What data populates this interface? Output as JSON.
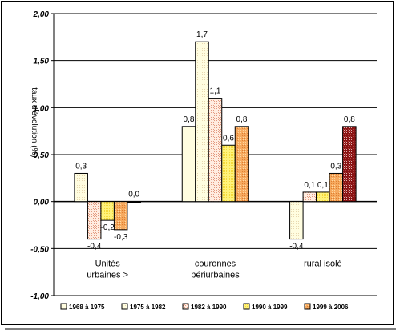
{
  "chart_data": {
    "type": "bar",
    "categories": [
      "Unités urbaines >",
      "couronnes périurbaines",
      "rural isolé"
    ],
    "category_lines": [
      [
        "Unités",
        "urbaines >"
      ],
      [
        "couronnes",
        "périurbaines"
      ],
      [
        "rural isolé"
      ]
    ],
    "series": [
      {
        "name": "1968 à 1975",
        "values": [
          null,
          0.8,
          null
        ],
        "labels": [
          null,
          "0,8",
          null
        ],
        "color": "#fffde0",
        "pattern": "plain"
      },
      {
        "name": "1975 à 1982",
        "values": [
          0.3,
          1.7,
          -0.4
        ],
        "labels": [
          "0,3",
          "1,7",
          "-0,4"
        ],
        "color": "#fffde0",
        "pattern": "light"
      },
      {
        "name": "1982 à 1990",
        "values": [
          -0.4,
          1.1,
          0.1
        ],
        "labels": [
          "-0,4",
          "1,1",
          "0,1"
        ],
        "color": "#ffe6d6",
        "pattern": "dots"
      },
      {
        "name": "1990 à 1999",
        "values": [
          -0.2,
          0.6,
          0.1
        ],
        "labels": [
          "-0,2",
          "0,6",
          "0,1"
        ],
        "color": "#fff080",
        "pattern": "yellow"
      },
      {
        "name": "1999 à 2006",
        "values": [
          -0.3,
          0.8,
          0.3
        ],
        "labels": [
          "-0,3",
          "0,8",
          "0,3"
        ],
        "color": "#f2a05a",
        "pattern": "orange"
      },
      {
        "name": "",
        "values": [
          0.0,
          null,
          0.8
        ],
        "labels": [
          "0,0",
          null,
          "0,8"
        ],
        "color": "#8b1a1a",
        "pattern": "dark"
      }
    ],
    "ylabel": "taux d'évolution (%)",
    "yticks": [
      "-1,00",
      "-0,50",
      "0,00",
      "0,50",
      "1,00",
      "1,50",
      "2,00"
    ],
    "ylim": [
      -1.0,
      2.0
    ],
    "grid": true,
    "legend_position": "bottom"
  }
}
